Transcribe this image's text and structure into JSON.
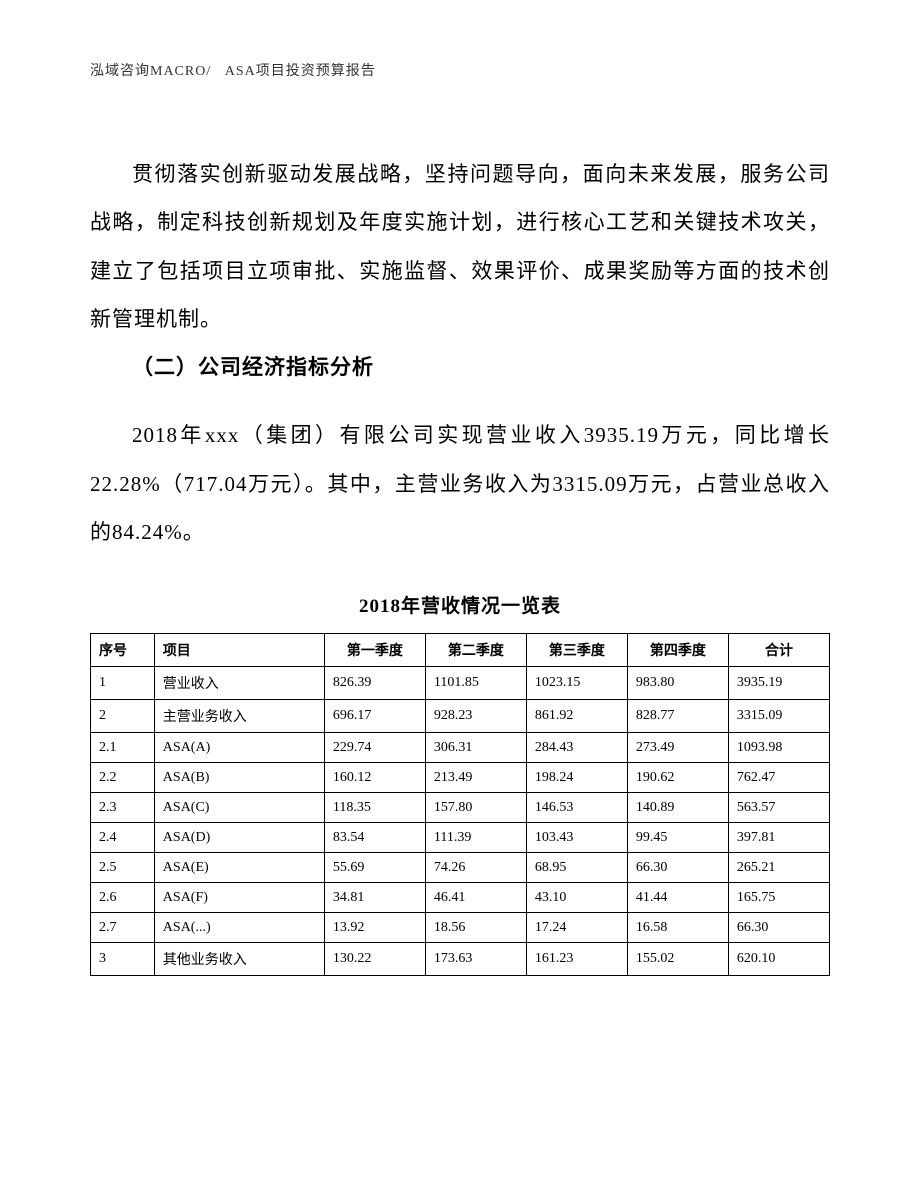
{
  "header": {
    "company": "泓域咨询MACRO/",
    "doc_title": "ASA项目投资预算报告"
  },
  "paragraphs": {
    "p1": "贯彻落实创新驱动发展战略，坚持问题导向，面向未来发展，服务公司战略，制定科技创新规划及年度实施计划，进行核心工艺和关键技术攻关，建立了包括项目立项审批、实施监督、效果评价、成果奖励等方面的技术创新管理机制。",
    "section_title": "（二）公司经济指标分析",
    "p2": "2018年xxx（集团）有限公司实现营业收入3935.19万元，同比增长22.28%（717.04万元）。其中，主营业务收入为3315.09万元，占营业总收入的84.24%。"
  },
  "table": {
    "title": "2018年营收情况一览表",
    "columns": {
      "seq": "序号",
      "item": "项目",
      "q1": "第一季度",
      "q2": "第二季度",
      "q3": "第三季度",
      "q4": "第四季度",
      "total": "合计"
    },
    "rows": [
      {
        "seq": "1",
        "item": "营业收入",
        "q1": "826.39",
        "q2": "1101.85",
        "q3": "1023.15",
        "q4": "983.80",
        "total": "3935.19"
      },
      {
        "seq": "2",
        "item": "主营业务收入",
        "q1": "696.17",
        "q2": "928.23",
        "q3": "861.92",
        "q4": "828.77",
        "total": "3315.09"
      },
      {
        "seq": "2.1",
        "item": "ASA(A)",
        "q1": "229.74",
        "q2": "306.31",
        "q3": "284.43",
        "q4": "273.49",
        "total": "1093.98"
      },
      {
        "seq": "2.2",
        "item": "ASA(B)",
        "q1": "160.12",
        "q2": "213.49",
        "q3": "198.24",
        "q4": "190.62",
        "total": "762.47"
      },
      {
        "seq": "2.3",
        "item": "ASA(C)",
        "q1": "118.35",
        "q2": "157.80",
        "q3": "146.53",
        "q4": "140.89",
        "total": "563.57"
      },
      {
        "seq": "2.4",
        "item": "ASA(D)",
        "q1": "83.54",
        "q2": "111.39",
        "q3": "103.43",
        "q4": "99.45",
        "total": "397.81"
      },
      {
        "seq": "2.5",
        "item": "ASA(E)",
        "q1": "55.69",
        "q2": "74.26",
        "q3": "68.95",
        "q4": "66.30",
        "total": "265.21"
      },
      {
        "seq": "2.6",
        "item": "ASA(F)",
        "q1": "34.81",
        "q2": "46.41",
        "q3": "43.10",
        "q4": "41.44",
        "total": "165.75"
      },
      {
        "seq": "2.7",
        "item": "ASA(...)",
        "q1": "13.92",
        "q2": "18.56",
        "q3": "17.24",
        "q4": "16.58",
        "total": "66.30"
      },
      {
        "seq": "3",
        "item": "其他业务收入",
        "q1": "130.22",
        "q2": "173.63",
        "q3": "161.23",
        "q4": "155.02",
        "total": "620.10"
      }
    ]
  }
}
